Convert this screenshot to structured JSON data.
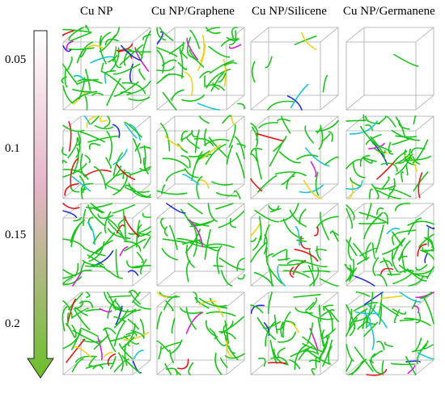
{
  "columns": [
    "Cu NP",
    "Cu NP/Graphene",
    "Cu NP/Silicene",
    "Cu NP/Germanene"
  ],
  "rows": [
    "0.05",
    "0.1",
    "0.15",
    "0.2"
  ],
  "colors": {
    "box_edge": "#a8a8a8",
    "arrow_top": "#ffffff",
    "arrow_mid": "#e6b4c8",
    "arrow_bottom": "#6bbf2a",
    "dislocation_main": "#19c419",
    "dislocation_red": "#e01a1a",
    "dislocation_blue": "#2333d6",
    "dislocation_magenta": "#d61ed6",
    "dislocation_yellow": "#f0d21a",
    "dislocation_cyan": "#19c4d6"
  },
  "density": [
    [
      60,
      45,
      8,
      1
    ],
    [
      55,
      38,
      30,
      55
    ],
    [
      58,
      32,
      45,
      60
    ],
    [
      65,
      40,
      50,
      55
    ]
  ]
}
